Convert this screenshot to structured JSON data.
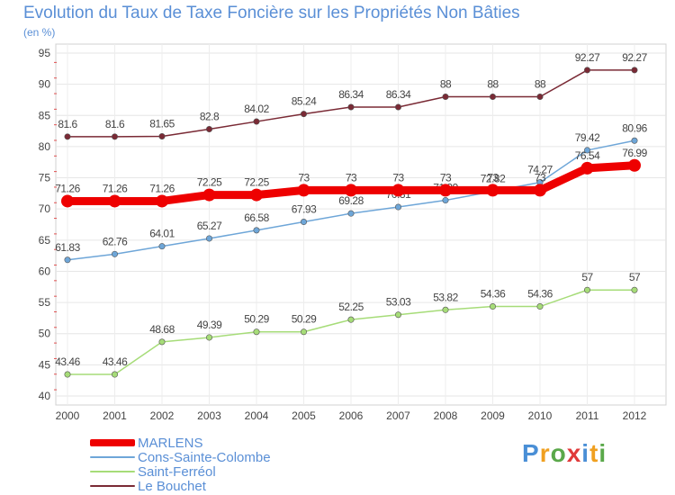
{
  "chart_data": {
    "type": "line",
    "title": "Evolution du Taux de Taxe Foncière sur les Propriétés Non Bâties",
    "unit_label": "(en %)",
    "x": [
      "2000",
      "2001",
      "2002",
      "2003",
      "2004",
      "2005",
      "2006",
      "2007",
      "2008",
      "2009",
      "2010",
      "2011",
      "2012"
    ],
    "ylim": [
      40,
      95
    ],
    "yticks": [
      "40",
      "45",
      "50",
      "55",
      "60",
      "65",
      "70",
      "75",
      "80",
      "85",
      "90",
      "95"
    ],
    "grid": true,
    "legend_position": "bottom-left",
    "series": [
      {
        "name": "Le Bouchet",
        "color": "#7a2a35",
        "values": [
          81.6,
          81.6,
          81.65,
          82.8,
          84.02,
          85.24,
          86.34,
          86.34,
          88,
          88,
          88,
          92.27,
          92.27
        ],
        "labels": [
          "81.6",
          "81.6",
          "81.65",
          "82.8",
          "84.02",
          "85.24",
          "86.34",
          "86.34",
          "88",
          "88",
          "88",
          "92.27",
          "92.27"
        ]
      },
      {
        "name": "Saint-Ferréol",
        "color": "#a6dc78",
        "values": [
          43.46,
          43.46,
          48.68,
          49.39,
          50.29,
          50.29,
          52.25,
          53.03,
          53.82,
          54.36,
          54.36,
          57,
          57
        ],
        "labels": [
          "43.46",
          "43.46",
          "48.68",
          "49.39",
          "50.29",
          "50.29",
          "52.25",
          "53.03",
          "53.82",
          "54.36",
          "54.36",
          "57",
          "57"
        ]
      },
      {
        "name": "Cons-Sainte-Colombe",
        "color": "#6ea6d8",
        "values": [
          61.83,
          62.76,
          64.01,
          65.27,
          66.58,
          67.93,
          69.28,
          70.31,
          71.39,
          72.82,
          74.27,
          79.42,
          80.96
        ],
        "labels": [
          "61.83",
          "62.76",
          "64.01",
          "65.27",
          "66.58",
          "67.93",
          "69.28",
          "70.31",
          "71.39",
          "72.82",
          "74.27",
          "79.42",
          "80.96"
        ]
      },
      {
        "name": "MARLENS",
        "color": "#ee0000",
        "values": [
          71.26,
          71.26,
          71.26,
          72.25,
          72.25,
          73,
          73,
          73,
          73,
          73,
          73,
          76.54,
          76.99
        ],
        "labels": [
          "71.26",
          "71.26",
          "71.26",
          "72.25",
          "72.25",
          "73",
          "73",
          "73",
          "73",
          "73",
          "73",
          "76.54",
          "76.99"
        ]
      }
    ],
    "legend": [
      "MARLENS",
      "Cons-Sainte-Colombe",
      "Saint-Ferréol",
      "Le Bouchet"
    ]
  },
  "brand": {
    "letters": [
      "P",
      "r",
      "o",
      "x",
      "i",
      "t",
      "i"
    ],
    "colors": [
      "#4a8fd6",
      "#f0a020",
      "#5aa84a",
      "#e03a3a",
      "#4a8fd6",
      "#f0a020",
      "#5aa84a"
    ]
  }
}
